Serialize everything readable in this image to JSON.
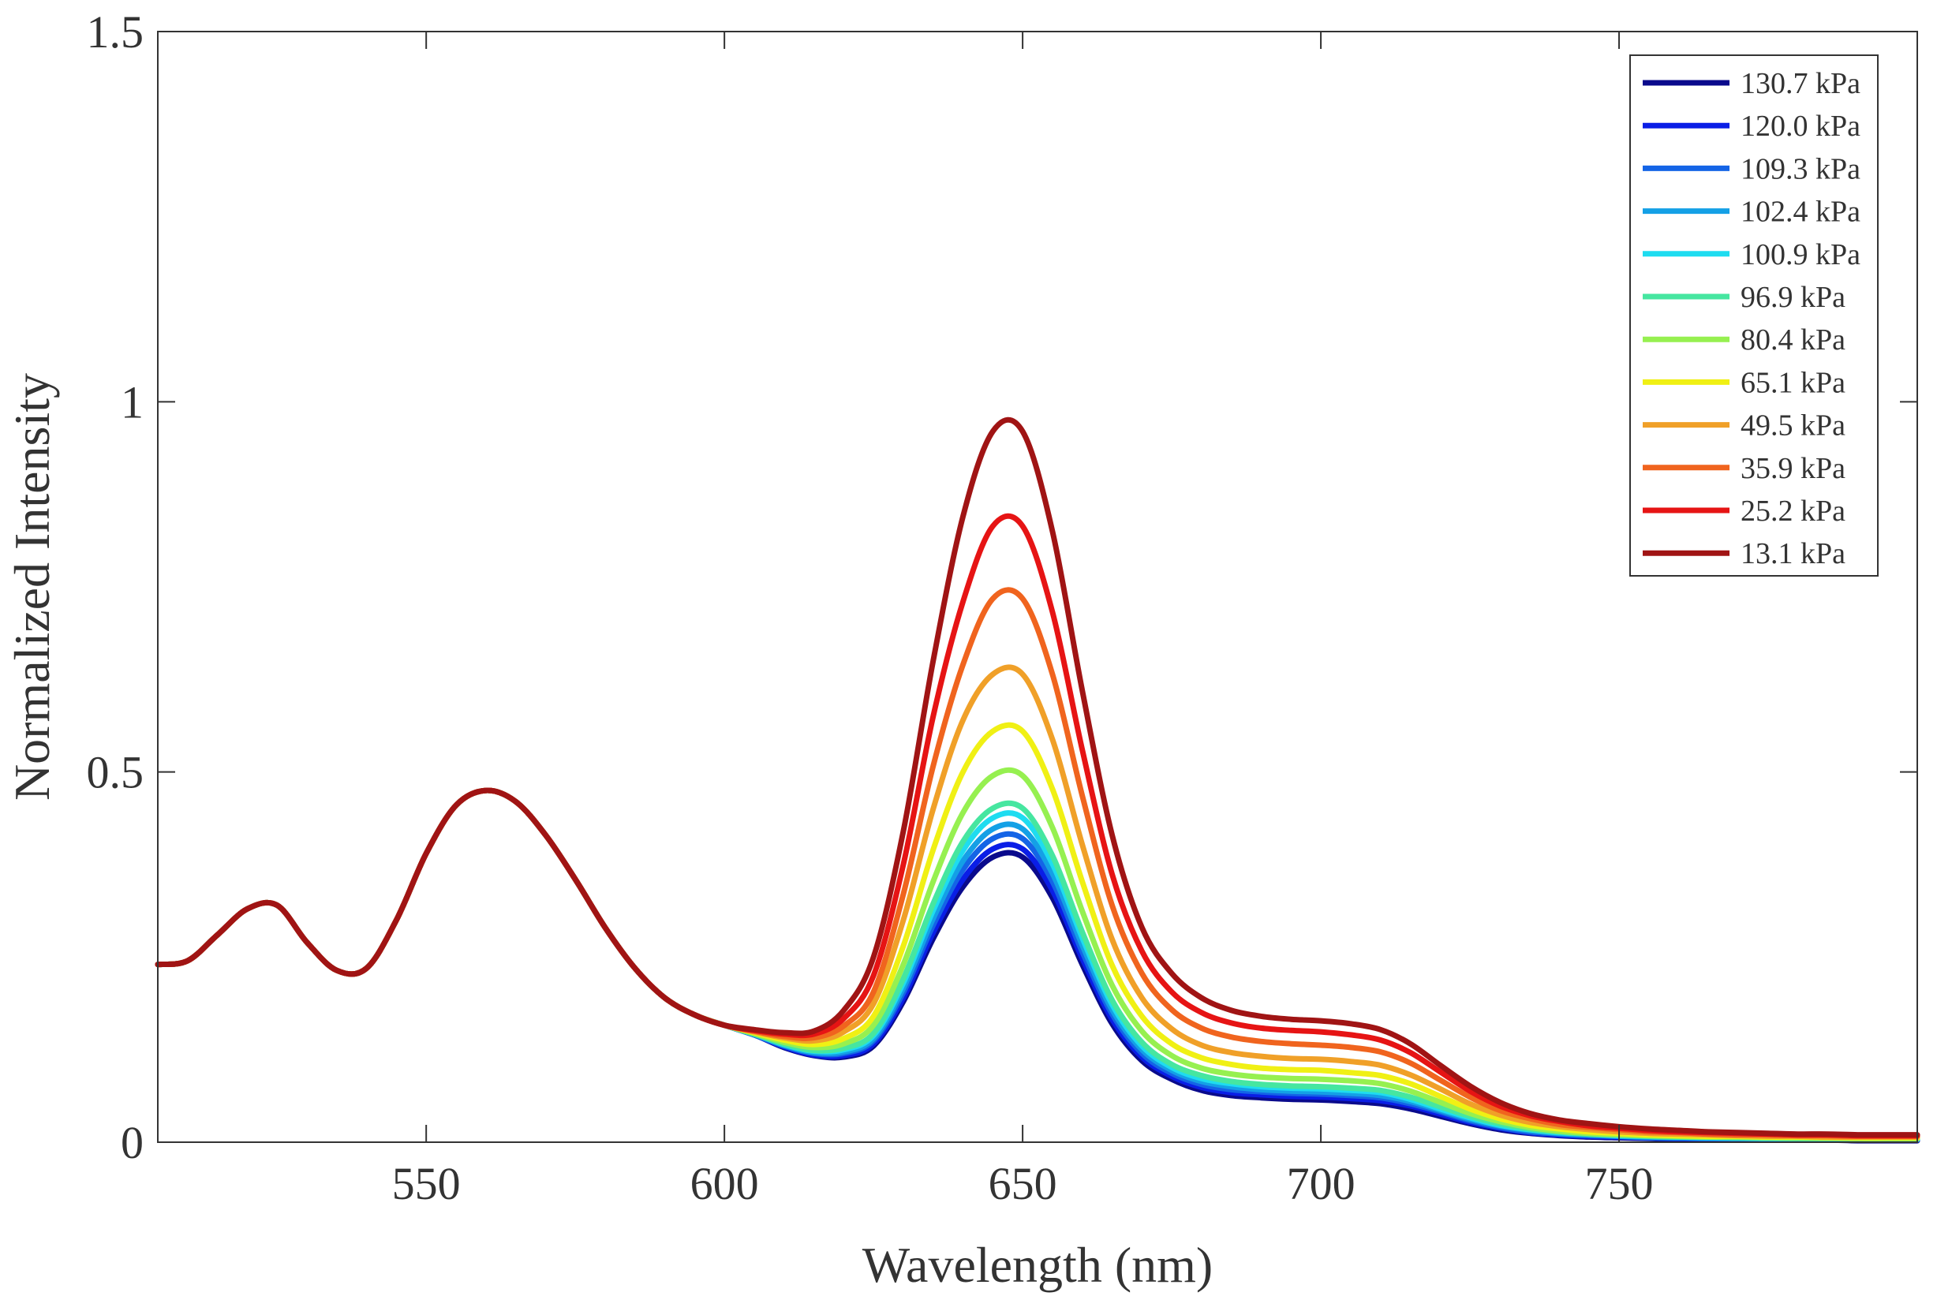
{
  "chart_data": {
    "type": "line",
    "xlabel": "Wavelength (nm)",
    "ylabel": "Normalized Intensity",
    "xlim": [
      505,
      800
    ],
    "ylim": [
      0,
      1.5
    ],
    "x_ticks": [
      550,
      600,
      650,
      700,
      750
    ],
    "x_tick_labels": [
      "550",
      "600",
      "650",
      "700",
      "750"
    ],
    "y_ticks": [
      0,
      0.5,
      1,
      1.5
    ],
    "y_tick_labels": [
      "0",
      "0.5",
      "1",
      "1.5"
    ],
    "grid": false,
    "legend_position": "top-right",
    "x": [
      505,
      510,
      515,
      520,
      525,
      530,
      535,
      540,
      545,
      550,
      555,
      560,
      565,
      570,
      575,
      580,
      585,
      590,
      595,
      600,
      605,
      610,
      615,
      620,
      625,
      630,
      635,
      640,
      645,
      650,
      655,
      660,
      665,
      670,
      675,
      680,
      685,
      690,
      695,
      700,
      705,
      710,
      715,
      720,
      725,
      730,
      735,
      740,
      745,
      750,
      755,
      760,
      765,
      770,
      775,
      780,
      785,
      790,
      795,
      800
    ],
    "shared_baseline": {
      "description": "curve segment common to all series (505-600 nm)",
      "values": [
        0.24,
        0.245,
        0.28,
        0.315,
        0.32,
        0.27,
        0.232,
        0.235,
        0.3,
        0.39,
        0.455,
        0.475,
        0.46,
        0.415,
        0.355,
        0.29,
        0.235,
        0.195,
        0.172,
        0.158
      ]
    },
    "series": [
      {
        "name": "130.7 kPa",
        "color": "#0a0a8c",
        "values": [
          0.24,
          0.245,
          0.28,
          0.315,
          0.32,
          0.27,
          0.232,
          0.235,
          0.3,
          0.39,
          0.455,
          0.475,
          0.46,
          0.415,
          0.355,
          0.29,
          0.235,
          0.195,
          0.172,
          0.158,
          0.145,
          0.128,
          0.117,
          0.115,
          0.13,
          0.19,
          0.275,
          0.345,
          0.385,
          0.385,
          0.33,
          0.24,
          0.16,
          0.11,
          0.085,
          0.07,
          0.063,
          0.06,
          0.058,
          0.057,
          0.055,
          0.052,
          0.045,
          0.035,
          0.025,
          0.017,
          0.012,
          0.009,
          0.007,
          0.006,
          0.005,
          0.004,
          0.004,
          0.003,
          0.003,
          0.003,
          0.003,
          0.002,
          0.002,
          0.002
        ]
      },
      {
        "name": "120.0 kPa",
        "color": "#0a1ee6",
        "values": [
          0.24,
          0.245,
          0.28,
          0.315,
          0.32,
          0.27,
          0.232,
          0.235,
          0.3,
          0.39,
          0.455,
          0.475,
          0.46,
          0.415,
          0.355,
          0.29,
          0.235,
          0.195,
          0.172,
          0.158,
          0.145,
          0.129,
          0.118,
          0.117,
          0.133,
          0.195,
          0.283,
          0.355,
          0.396,
          0.396,
          0.34,
          0.248,
          0.166,
          0.115,
          0.089,
          0.074,
          0.067,
          0.064,
          0.062,
          0.061,
          0.059,
          0.056,
          0.049,
          0.038,
          0.027,
          0.019,
          0.013,
          0.01,
          0.008,
          0.007,
          0.006,
          0.005,
          0.005,
          0.004,
          0.004,
          0.004,
          0.003,
          0.003,
          0.003,
          0.003
        ]
      },
      {
        "name": "109.3 kPa",
        "color": "#1464e6",
        "values": [
          0.24,
          0.245,
          0.28,
          0.315,
          0.32,
          0.27,
          0.232,
          0.235,
          0.3,
          0.39,
          0.455,
          0.475,
          0.46,
          0.415,
          0.355,
          0.29,
          0.235,
          0.195,
          0.172,
          0.158,
          0.145,
          0.13,
          0.12,
          0.12,
          0.137,
          0.202,
          0.293,
          0.368,
          0.41,
          0.41,
          0.352,
          0.257,
          0.173,
          0.12,
          0.093,
          0.078,
          0.071,
          0.068,
          0.066,
          0.065,
          0.063,
          0.06,
          0.052,
          0.041,
          0.029,
          0.02,
          0.014,
          0.011,
          0.009,
          0.008,
          0.006,
          0.006,
          0.005,
          0.005,
          0.004,
          0.004,
          0.004,
          0.004,
          0.004,
          0.003
        ]
      },
      {
        "name": "102.4 kPa",
        "color": "#14a0e6",
        "values": [
          0.24,
          0.245,
          0.28,
          0.315,
          0.32,
          0.27,
          0.232,
          0.235,
          0.3,
          0.39,
          0.455,
          0.475,
          0.46,
          0.415,
          0.355,
          0.29,
          0.235,
          0.195,
          0.172,
          0.158,
          0.146,
          0.131,
          0.121,
          0.122,
          0.14,
          0.208,
          0.302,
          0.38,
          0.423,
          0.423,
          0.363,
          0.266,
          0.179,
          0.125,
          0.097,
          0.082,
          0.075,
          0.071,
          0.069,
          0.068,
          0.066,
          0.063,
          0.055,
          0.043,
          0.031,
          0.022,
          0.016,
          0.012,
          0.01,
          0.008,
          0.007,
          0.006,
          0.006,
          0.005,
          0.005,
          0.005,
          0.004,
          0.004,
          0.004,
          0.004
        ]
      },
      {
        "name": "100.9 kPa",
        "color": "#1edcf0",
        "values": [
          0.24,
          0.245,
          0.28,
          0.315,
          0.32,
          0.27,
          0.232,
          0.235,
          0.3,
          0.39,
          0.455,
          0.475,
          0.46,
          0.415,
          0.355,
          0.29,
          0.235,
          0.195,
          0.172,
          0.158,
          0.146,
          0.132,
          0.123,
          0.125,
          0.144,
          0.215,
          0.313,
          0.394,
          0.438,
          0.438,
          0.376,
          0.276,
          0.186,
          0.13,
          0.101,
          0.086,
          0.079,
          0.075,
          0.073,
          0.072,
          0.07,
          0.067,
          0.058,
          0.045,
          0.033,
          0.023,
          0.017,
          0.013,
          0.011,
          0.009,
          0.008,
          0.007,
          0.006,
          0.006,
          0.005,
          0.005,
          0.005,
          0.005,
          0.004,
          0.004
        ]
      },
      {
        "name": "96.9 kPa",
        "color": "#46e6a0",
        "values": [
          0.24,
          0.245,
          0.28,
          0.315,
          0.32,
          0.27,
          0.232,
          0.235,
          0.3,
          0.39,
          0.455,
          0.475,
          0.46,
          0.415,
          0.355,
          0.29,
          0.235,
          0.195,
          0.172,
          0.158,
          0.146,
          0.133,
          0.124,
          0.127,
          0.147,
          0.221,
          0.322,
          0.406,
          0.451,
          0.451,
          0.387,
          0.284,
          0.192,
          0.135,
          0.105,
          0.09,
          0.082,
          0.078,
          0.076,
          0.075,
          0.073,
          0.07,
          0.061,
          0.048,
          0.035,
          0.025,
          0.018,
          0.014,
          0.011,
          0.01,
          0.008,
          0.007,
          0.007,
          0.006,
          0.006,
          0.005,
          0.005,
          0.005,
          0.005,
          0.004
        ]
      },
      {
        "name": "80.4 kPa",
        "color": "#96f050",
        "values": [
          0.24,
          0.245,
          0.28,
          0.315,
          0.32,
          0.27,
          0.232,
          0.235,
          0.3,
          0.39,
          0.455,
          0.475,
          0.46,
          0.415,
          0.355,
          0.29,
          0.235,
          0.195,
          0.172,
          0.158,
          0.147,
          0.135,
          0.128,
          0.133,
          0.158,
          0.24,
          0.352,
          0.445,
          0.495,
          0.495,
          0.425,
          0.312,
          0.212,
          0.15,
          0.117,
          0.1,
          0.092,
          0.088,
          0.086,
          0.085,
          0.083,
          0.079,
          0.069,
          0.054,
          0.039,
          0.028,
          0.02,
          0.015,
          0.012,
          0.01,
          0.009,
          0.008,
          0.007,
          0.007,
          0.006,
          0.006,
          0.006,
          0.005,
          0.005,
          0.005
        ]
      },
      {
        "name": "65.1 kPa",
        "color": "#f0f014",
        "values": [
          0.24,
          0.245,
          0.28,
          0.315,
          0.32,
          0.27,
          0.232,
          0.235,
          0.3,
          0.39,
          0.455,
          0.475,
          0.46,
          0.415,
          0.355,
          0.29,
          0.235,
          0.195,
          0.172,
          0.158,
          0.148,
          0.138,
          0.132,
          0.14,
          0.17,
          0.265,
          0.395,
          0.5,
          0.555,
          0.555,
          0.477,
          0.352,
          0.239,
          0.17,
          0.133,
          0.114,
          0.105,
          0.1,
          0.098,
          0.097,
          0.094,
          0.09,
          0.079,
          0.062,
          0.045,
          0.032,
          0.023,
          0.018,
          0.014,
          0.012,
          0.01,
          0.009,
          0.008,
          0.008,
          0.007,
          0.007,
          0.006,
          0.006,
          0.006,
          0.006
        ]
      },
      {
        "name": "49.5 kPa",
        "color": "#f0a028",
        "values": [
          0.24,
          0.245,
          0.28,
          0.315,
          0.32,
          0.27,
          0.232,
          0.235,
          0.3,
          0.39,
          0.455,
          0.475,
          0.46,
          0.415,
          0.355,
          0.29,
          0.235,
          0.195,
          0.172,
          0.158,
          0.149,
          0.141,
          0.137,
          0.149,
          0.187,
          0.3,
          0.45,
          0.57,
          0.632,
          0.632,
          0.544,
          0.402,
          0.274,
          0.195,
          0.153,
          0.131,
          0.121,
          0.116,
          0.113,
          0.112,
          0.109,
          0.104,
          0.091,
          0.072,
          0.052,
          0.037,
          0.027,
          0.021,
          0.017,
          0.014,
          0.012,
          0.011,
          0.01,
          0.009,
          0.008,
          0.008,
          0.007,
          0.007,
          0.007,
          0.007
        ]
      },
      {
        "name": "35.9 kPa",
        "color": "#f0641e",
        "values": [
          0.24,
          0.245,
          0.28,
          0.315,
          0.32,
          0.27,
          0.232,
          0.235,
          0.3,
          0.39,
          0.455,
          0.475,
          0.46,
          0.415,
          0.355,
          0.29,
          0.235,
          0.195,
          0.172,
          0.158,
          0.15,
          0.143,
          0.141,
          0.157,
          0.203,
          0.335,
          0.508,
          0.645,
          0.734,
          0.734,
          0.632,
          0.468,
          0.32,
          0.228,
          0.179,
          0.154,
          0.142,
          0.136,
          0.133,
          0.131,
          0.128,
          0.122,
          0.107,
          0.084,
          0.061,
          0.043,
          0.032,
          0.024,
          0.02,
          0.017,
          0.014,
          0.013,
          0.011,
          0.01,
          0.01,
          0.009,
          0.009,
          0.008,
          0.008,
          0.008
        ]
      },
      {
        "name": "25.2 kPa",
        "color": "#e61414",
        "values": [
          0.24,
          0.245,
          0.28,
          0.315,
          0.32,
          0.27,
          0.232,
          0.235,
          0.3,
          0.39,
          0.455,
          0.475,
          0.46,
          0.415,
          0.355,
          0.29,
          0.235,
          0.195,
          0.172,
          0.158,
          0.151,
          0.146,
          0.146,
          0.167,
          0.225,
          0.375,
          0.575,
          0.73,
          0.832,
          0.832,
          0.716,
          0.53,
          0.362,
          0.258,
          0.203,
          0.175,
          0.161,
          0.154,
          0.151,
          0.149,
          0.145,
          0.138,
          0.121,
          0.095,
          0.069,
          0.049,
          0.036,
          0.028,
          0.022,
          0.019,
          0.016,
          0.014,
          0.013,
          0.012,
          0.011,
          0.01,
          0.01,
          0.009,
          0.009,
          0.009
        ]
      },
      {
        "name": "13.1 kPa",
        "color": "#a01414",
        "values": [
          0.24,
          0.245,
          0.28,
          0.315,
          0.32,
          0.27,
          0.232,
          0.235,
          0.3,
          0.39,
          0.455,
          0.475,
          0.46,
          0.415,
          0.355,
          0.29,
          0.235,
          0.195,
          0.172,
          0.158,
          0.152,
          0.148,
          0.15,
          0.178,
          0.25,
          0.42,
          0.65,
          0.845,
          0.96,
          0.96,
          0.825,
          0.61,
          0.415,
          0.29,
          0.228,
          0.195,
          0.178,
          0.17,
          0.166,
          0.164,
          0.16,
          0.152,
          0.133,
          0.104,
          0.076,
          0.054,
          0.039,
          0.03,
          0.025,
          0.021,
          0.018,
          0.016,
          0.014,
          0.013,
          0.012,
          0.011,
          0.011,
          0.01,
          0.01,
          0.01
        ]
      }
    ]
  }
}
